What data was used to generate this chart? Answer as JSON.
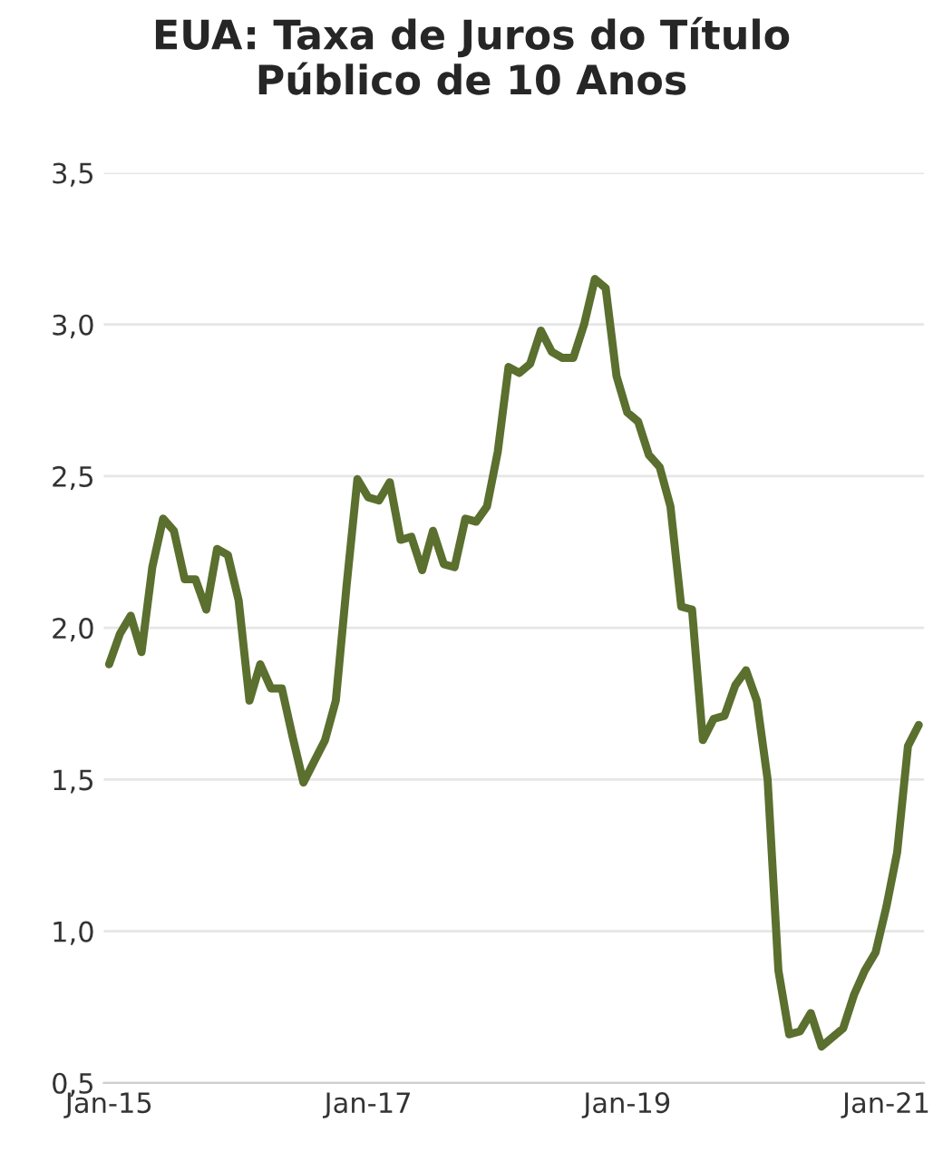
{
  "chart_data": {
    "type": "line",
    "title": "EUA: Taxa de Juros do Título\nPúblico de 10 Anos",
    "categories": [
      "Jan-15",
      null,
      null,
      null,
      null,
      null,
      null,
      null,
      null,
      null,
      null,
      null,
      null,
      null,
      null,
      null,
      null,
      null,
      null,
      null,
      null,
      null,
      null,
      null,
      "Jan-17",
      null,
      null,
      null,
      null,
      null,
      null,
      null,
      null,
      null,
      null,
      null,
      null,
      null,
      null,
      null,
      null,
      null,
      null,
      null,
      null,
      null,
      null,
      null,
      "Jan-19",
      null,
      null,
      null,
      null,
      null,
      null,
      null,
      null,
      null,
      null,
      null,
      null,
      null,
      null,
      null,
      null,
      null,
      null,
      null,
      null,
      null,
      null,
      null,
      "Jan-21",
      null,
      null,
      null
    ],
    "series": [
      {
        "color": "#5b6f2e",
        "values": [
          1.88,
          1.98,
          2.04,
          1.92,
          2.2,
          2.36,
          2.32,
          2.16,
          2.16,
          2.06,
          2.26,
          2.24,
          2.09,
          1.76,
          1.88,
          1.8,
          1.8,
          1.64,
          1.49,
          1.56,
          1.63,
          1.76,
          2.14,
          2.49,
          2.43,
          2.42,
          2.48,
          2.29,
          2.3,
          2.19,
          2.32,
          2.21,
          2.2,
          2.36,
          2.35,
          2.4,
          2.58,
          2.86,
          2.84,
          2.87,
          2.98,
          2.91,
          2.89,
          2.89,
          3.0,
          3.15,
          3.12,
          2.83,
          2.71,
          2.68,
          2.57,
          2.53,
          2.4,
          2.07,
          2.06,
          1.63,
          1.7,
          1.71,
          1.81,
          1.86,
          1.76,
          1.5,
          0.87,
          0.66,
          0.67,
          0.73,
          0.62,
          0.65,
          0.68,
          0.79,
          0.87,
          0.93,
          1.08,
          1.26,
          1.61,
          1.68
        ]
      }
    ],
    "ylim": [
      0.5,
      3.5
    ],
    "yticks": [
      {
        "value": 0.5,
        "label": "0,5"
      },
      {
        "value": 1.0,
        "label": "1,0"
      },
      {
        "value": 1.5,
        "label": "1,5"
      },
      {
        "value": 2.0,
        "label": "2,0"
      },
      {
        "value": 2.5,
        "label": "2,5"
      },
      {
        "value": 3.0,
        "label": "3,0"
      },
      {
        "value": 3.5,
        "label": "3,5"
      }
    ],
    "grid": "y",
    "legend": false,
    "marker": "none",
    "line_style": "solid"
  }
}
